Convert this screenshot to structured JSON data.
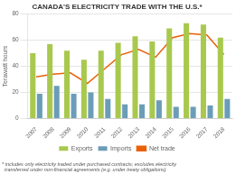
{
  "chart_data": {
    "type": "bar",
    "title": "CANADA'S ELECTRICITY TRADE WITH THE U.S.*",
    "ylabel": "Terawatt hours",
    "annotations": [
      "* includes only electricity traded under purchased contracts; excludes electricity\n  transferred under non-financial agreements (e.g. under treaty obligations)"
    ],
    "categories": [
      "2007",
      "2008",
      "2009",
      "2010",
      "2011",
      "2012",
      "2013",
      "2014",
      "2015",
      "2016",
      "2017",
      "2018"
    ],
    "series": [
      {
        "name": "Exports",
        "color": "#a8c94e",
        "values": [
          50,
          57,
          52,
          45,
          52,
          58,
          63,
          59,
          69,
          73,
          72,
          62
        ]
      },
      {
        "name": "Imports",
        "color": "#6b9db8",
        "values": [
          19,
          25,
          19,
          20,
          15,
          11,
          11,
          14,
          9,
          9,
          10,
          15
        ]
      },
      {
        "name": "Net trade",
        "type": "line",
        "color": "#e8610a",
        "values": [
          32,
          34,
          35,
          27,
          38,
          49,
          53,
          47,
          62,
          65,
          64,
          49
        ]
      }
    ],
    "ylim": [
      0,
      80
    ],
    "yticks": [
      0,
      20,
      40,
      60,
      80
    ],
    "grid": true,
    "legend": "bottom"
  }
}
